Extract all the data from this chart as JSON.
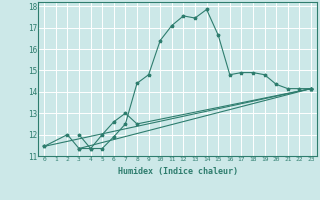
{
  "xlabel": "Humidex (Indice chaleur)",
  "xlim": [
    -0.5,
    23.5
  ],
  "ylim": [
    11,
    18.2
  ],
  "xticks": [
    0,
    1,
    2,
    3,
    4,
    5,
    6,
    7,
    8,
    9,
    10,
    11,
    12,
    13,
    14,
    15,
    16,
    17,
    18,
    19,
    20,
    21,
    22,
    23
  ],
  "yticks": [
    11,
    12,
    13,
    14,
    15,
    16,
    17,
    18
  ],
  "bg_color": "#cce8e8",
  "grid_color": "#ffffff",
  "line_color": "#2e7d6e",
  "lines": [
    {
      "x": [
        0,
        2,
        3,
        4,
        5,
        6,
        7,
        8,
        9,
        10,
        11,
        12,
        13,
        14,
        15,
        16,
        17,
        18,
        19,
        20,
        21,
        22,
        23
      ],
      "y": [
        11.45,
        12.0,
        11.35,
        11.35,
        11.35,
        11.9,
        12.5,
        14.4,
        14.8,
        16.4,
        17.1,
        17.55,
        17.45,
        17.85,
        16.65,
        14.8,
        14.9,
        14.9,
        14.8,
        14.35,
        14.15,
        14.15,
        14.15
      ]
    },
    {
      "x": [
        3,
        4,
        5,
        6,
        7,
        8,
        23
      ],
      "y": [
        12.0,
        11.35,
        12.0,
        12.6,
        13.0,
        12.5,
        14.15
      ]
    },
    {
      "x": [
        0,
        23
      ],
      "y": [
        11.45,
        14.15
      ]
    },
    {
      "x": [
        3,
        23
      ],
      "y": [
        11.35,
        14.15
      ]
    }
  ]
}
